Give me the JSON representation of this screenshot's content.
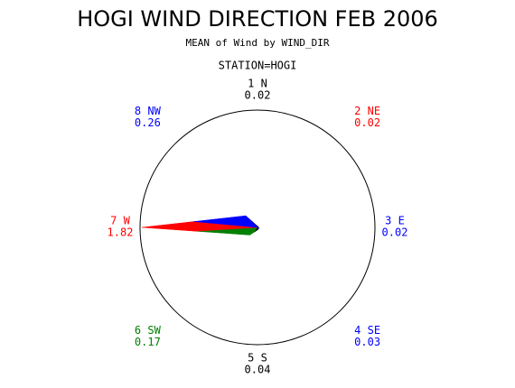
{
  "chart_data": {
    "type": "star",
    "title": "HOGI WIND DIRECTION FEB 2006",
    "subtitle": "MEAN of Wind by WIND_DIR",
    "annotation": "STATION=HOGI",
    "categories": [
      "1 N",
      "2 NE",
      "3 E",
      "4 SE",
      "5 S",
      "6 SW",
      "7 W",
      "8 NW"
    ],
    "values": [
      0.02,
      0.02,
      0.02,
      0.03,
      0.04,
      0.17,
      1.82,
      0.26
    ],
    "colors": [
      "#000000",
      "#ff0000",
      "#0000ff",
      "#0000ff",
      "#000000",
      "#008000",
      "#ff0000",
      "#0000ff"
    ]
  }
}
